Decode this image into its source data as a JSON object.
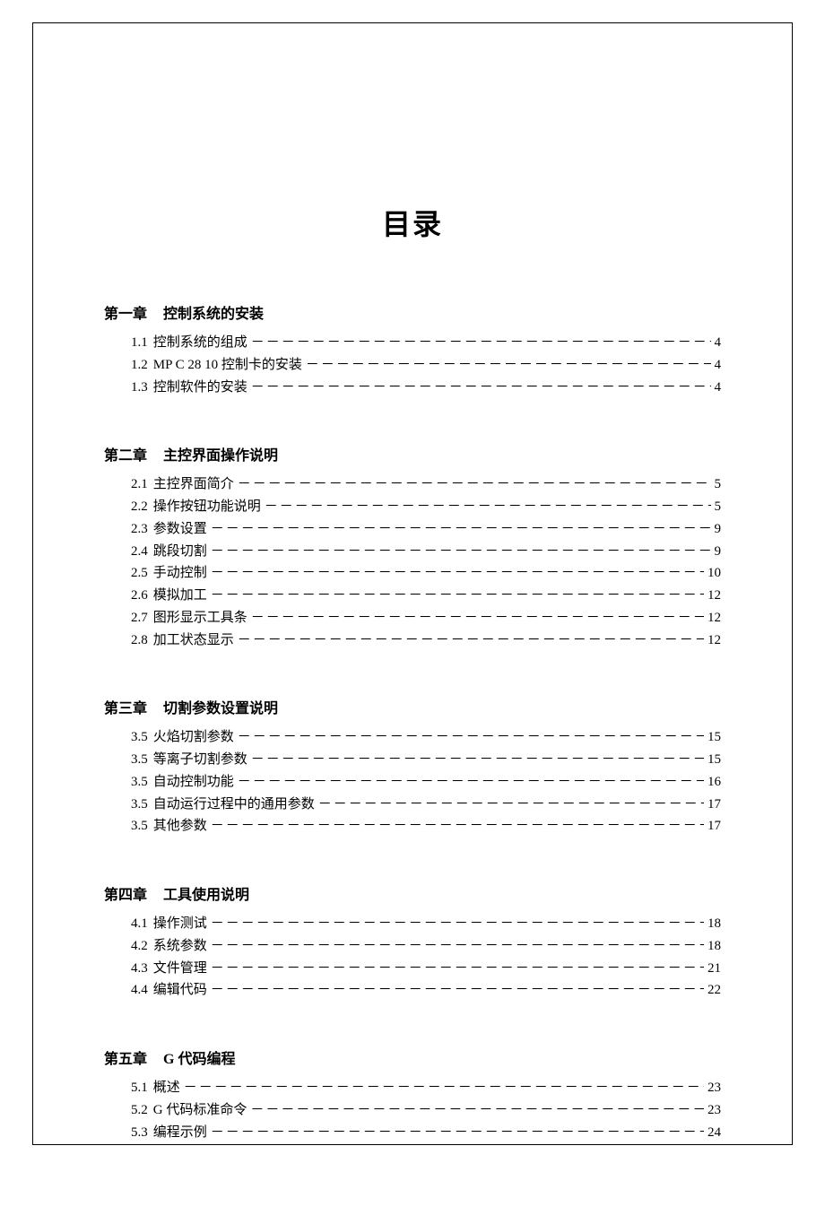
{
  "title": "目录",
  "leader_char": "－",
  "colors": {
    "text": "#000000",
    "background": "#ffffff",
    "border": "#000000"
  },
  "typography": {
    "title_fontsize": 32,
    "heading_fontsize": 16,
    "entry_fontsize": 15,
    "font_family": "SimSun"
  },
  "chapters": [
    {
      "label": "第一章",
      "title": "控制系统的安装",
      "entries": [
        {
          "num": "1.1",
          "title": "控制系统的组成",
          "page": "4"
        },
        {
          "num": "1.2",
          "title": "MP C 28 10 控制卡的安装",
          "page": "4"
        },
        {
          "num": "1.3",
          "title": "控制软件的安装",
          "page": "4"
        }
      ]
    },
    {
      "label": "第二章",
      "title": "主控界面操作说明",
      "entries": [
        {
          "num": "2.1",
          "title": "主控界面简介",
          "page": "5"
        },
        {
          "num": "2.2",
          "title": "操作按钮功能说明",
          "page": "5"
        },
        {
          "num": "2.3",
          "title": "参数设置",
          "page": "9"
        },
        {
          "num": "2.4",
          "title": "跳段切割",
          "page": "9"
        },
        {
          "num": "2.5",
          "title": "手动控制",
          "page": "10"
        },
        {
          "num": "2.6",
          "title": "模拟加工",
          "page": "12"
        },
        {
          "num": "2.7",
          "title": "图形显示工具条",
          "page": "12"
        },
        {
          "num": "2.8",
          "title": "加工状态显示",
          "page": "12"
        }
      ]
    },
    {
      "label": "第三章",
      "title": "切割参数设置说明",
      "entries": [
        {
          "num": "3.5",
          "title": "火焰切割参数",
          "page": "15"
        },
        {
          "num": "3.5",
          "title": "等离子切割参数",
          "page": "15"
        },
        {
          "num": "3.5",
          "title": "自动控制功能",
          "page": "16"
        },
        {
          "num": "3.5",
          "title": "自动运行过程中的通用参数",
          "page": "17"
        },
        {
          "num": "3.5",
          "title": "其他参数",
          "page": "17"
        }
      ]
    },
    {
      "label": "第四章",
      "title": "工具使用说明",
      "entries": [
        {
          "num": "4.1",
          "title": "操作测试",
          "page": "18"
        },
        {
          "num": "4.2",
          "title": "系统参数",
          "page": "18"
        },
        {
          "num": "4.3",
          "title": "文件管理",
          "page": "21"
        },
        {
          "num": "4.4",
          "title": "编辑代码",
          "page": "22"
        }
      ]
    },
    {
      "label": "第五章",
      "title": "G 代码编程",
      "entries": [
        {
          "num": "5.1",
          "title": "概述",
          "page": "23"
        },
        {
          "num": "5.2",
          "title": "G 代码标准命令",
          "page": "23"
        },
        {
          "num": "5.3",
          "title": "编程示例",
          "page": "24"
        }
      ]
    }
  ]
}
